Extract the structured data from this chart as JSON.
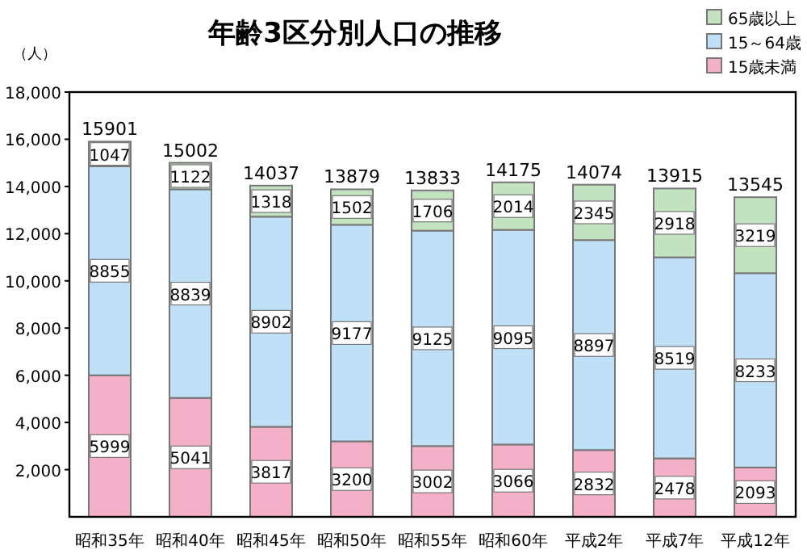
{
  "chart_data": {
    "type": "bar",
    "stacked": true,
    "title": "年齢3区分別人口の推移",
    "ylabel": "（人）",
    "categories": [
      "昭和35年",
      "昭和40年",
      "昭和45年",
      "昭和50年",
      "昭和55年",
      "昭和60年",
      "平成2年",
      "平成7年",
      "平成12年"
    ],
    "series": [
      {
        "name": "15歳未満",
        "color": "#f4b0c8",
        "values": [
          5999,
          5041,
          3817,
          3200,
          3002,
          3066,
          2832,
          2478,
          2093
        ]
      },
      {
        "name": "15～64歳",
        "color": "#bfe0f6",
        "values": [
          8855,
          8839,
          8902,
          9177,
          9125,
          9095,
          8897,
          8519,
          8233
        ]
      },
      {
        "name": "65歳以上",
        "color": "#c2e2c0",
        "values": [
          1047,
          1122,
          1318,
          1502,
          1706,
          2014,
          2345,
          2918,
          3219
        ]
      }
    ],
    "totals": [
      "15901",
      "15002",
      "14037",
      "13879",
      "13833",
      "14175",
      "14074",
      "13915",
      "13545"
    ],
    "ylim": [
      0,
      18000
    ],
    "yticks": [
      {
        "value": 2000,
        "label": "2,000"
      },
      {
        "value": 4000,
        "label": "4,000"
      },
      {
        "value": 6000,
        "label": "6,000"
      },
      {
        "value": 8000,
        "label": "8,000"
      },
      {
        "value": 10000,
        "label": "10,000"
      },
      {
        "value": 12000,
        "label": "12,000"
      },
      {
        "value": 14000,
        "label": "14,000"
      },
      {
        "value": 16000,
        "label": "16,000"
      },
      {
        "value": 18000,
        "label": "18,000"
      }
    ],
    "data_labels": true,
    "grid": false,
    "legend": "top right"
  }
}
